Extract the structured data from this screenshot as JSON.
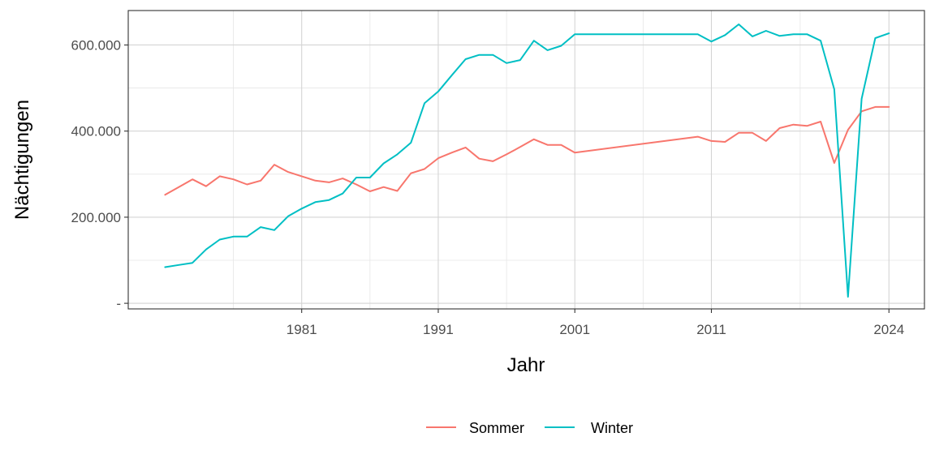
{
  "chart_data": {
    "type": "line",
    "xlabel": "Jahr",
    "ylabel": "Nächtigungen",
    "x_ticks": [
      {
        "value": 1981,
        "label": "1981"
      },
      {
        "value": 1991,
        "label": "1991"
      },
      {
        "value": 2001,
        "label": "2001"
      },
      {
        "value": 2011,
        "label": "2011"
      },
      {
        "value": 2024,
        "label": "2024"
      }
    ],
    "y_ticks": [
      {
        "value": 0,
        "label": "-"
      },
      {
        "value": 200000,
        "label": "200.000"
      },
      {
        "value": 400000,
        "label": "400.000"
      },
      {
        "value": 600000,
        "label": "600.000"
      }
    ],
    "xlim": [
      1968.3,
      2026.6
    ],
    "ylim": [
      -13000,
      680000
    ],
    "grid": true,
    "legend_position": "bottom",
    "series": [
      {
        "name": "Sommer",
        "color": "#F8766D",
        "x": [
          1971,
          1972,
          1973,
          1974,
          1975,
          1976,
          1977,
          1978,
          1979,
          1980,
          1981,
          1982,
          1983,
          1984,
          1985,
          1986,
          1987,
          1988,
          1989,
          1990,
          1991,
          1992,
          1993,
          1994,
          1995,
          1996,
          1997,
          1998,
          1999,
          2000,
          2001,
          2010,
          2011,
          2012,
          2013,
          2014,
          2015,
          2016,
          2017,
          2018,
          2019,
          2020,
          2021,
          2022,
          2023,
          2024
        ],
        "y": [
          252000,
          270000,
          288000,
          272000,
          295000,
          288000,
          276000,
          285000,
          322000,
          305000,
          295000,
          285000,
          281000,
          290000,
          276000,
          260000,
          270000,
          261000,
          302000,
          312000,
          337000,
          350000,
          362000,
          336000,
          330000,
          346000,
          363000,
          381000,
          368000,
          368000,
          350000,
          387000,
          377000,
          375000,
          396000,
          396000,
          377000,
          407000,
          415000,
          412000,
          422000,
          326000,
          403000,
          446000,
          456000,
          456000
        ]
      },
      {
        "name": "Winter",
        "color": "#00BFC4",
        "x": [
          1971,
          1972,
          1973,
          1974,
          1975,
          1976,
          1977,
          1978,
          1979,
          1980,
          1981,
          1982,
          1983,
          1984,
          1985,
          1986,
          1987,
          1988,
          1989,
          1990,
          1991,
          1992,
          1993,
          1994,
          1995,
          1996,
          1997,
          1998,
          1999,
          2000,
          2001,
          2010,
          2011,
          2012,
          2013,
          2014,
          2015,
          2016,
          2017,
          2018,
          2019,
          2020,
          2021,
          2022,
          2023,
          2024
        ],
        "y": [
          84000,
          89000,
          94000,
          125000,
          148000,
          155000,
          155000,
          177000,
          170000,
          202000,
          220000,
          235000,
          240000,
          255000,
          292000,
          292000,
          325000,
          346000,
          373000,
          465000,
          492000,
          530000,
          567000,
          577000,
          577000,
          558000,
          565000,
          610000,
          588000,
          598000,
          625000,
          625000,
          608000,
          623000,
          648000,
          620000,
          633000,
          621000,
          625000,
          625000,
          610000,
          497000,
          15000,
          475000,
          616000,
          627000
        ]
      }
    ]
  }
}
